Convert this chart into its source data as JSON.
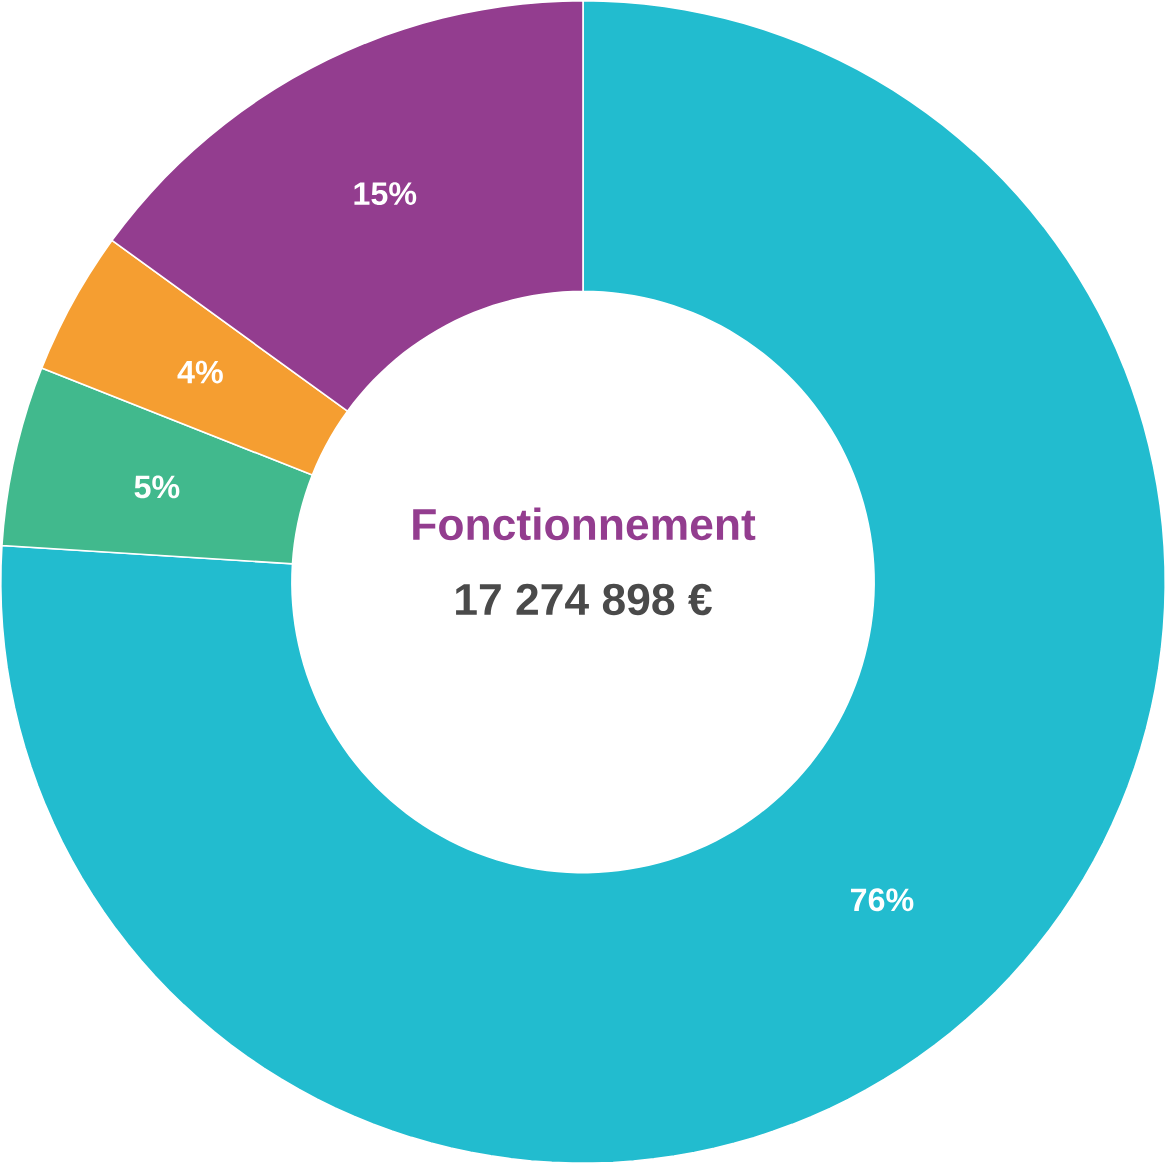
{
  "chart_data": {
    "type": "donut",
    "title": "Fonctionnement",
    "subtitle": "17 274 898 €",
    "categories": [
      null,
      null,
      null,
      null
    ],
    "values": [
      76,
      5,
      4,
      15
    ],
    "colors": [
      "#22bccf",
      "#41b98d",
      "#f59e31",
      "#933d8f"
    ],
    "value_labels": [
      "76%",
      "5%",
      "4%",
      "15%"
    ]
  }
}
